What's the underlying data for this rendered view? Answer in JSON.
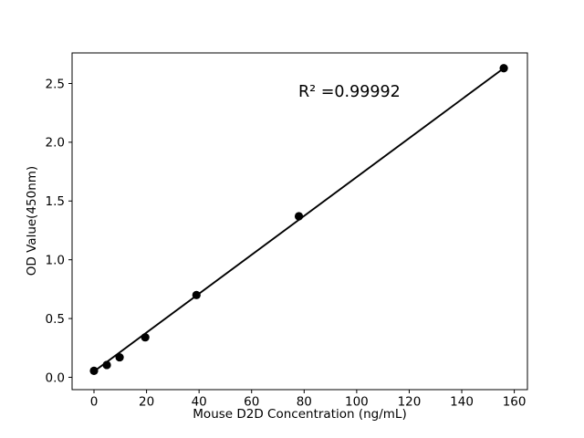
{
  "figure": {
    "background_color": "#ffffff",
    "foreground_color": "#000000"
  },
  "chart_data": {
    "type": "scatter",
    "title": "",
    "xlabel": "Mouse D2D Concentration (ng/mL)",
    "ylabel": "OD Value(450nm)",
    "annotation": "R² =0.99992",
    "x": [
      0,
      4.88,
      9.75,
      19.5,
      39,
      78,
      156
    ],
    "y": [
      0.055,
      0.105,
      0.17,
      0.34,
      0.7,
      1.37,
      2.63
    ],
    "fit_line": {
      "x": [
        0,
        156
      ],
      "y": [
        0.05,
        2.63
      ]
    },
    "xtick_values": [
      0,
      20,
      40,
      60,
      80,
      100,
      120,
      140,
      160
    ],
    "xtick_labels": [
      "0",
      "20",
      "40",
      "60",
      "80",
      "100",
      "120",
      "140",
      "160"
    ],
    "ytick_values": [
      0.0,
      0.5,
      1.0,
      1.5,
      2.0,
      2.5
    ],
    "ytick_labels": [
      "0.0",
      "0.5",
      "1.0",
      "1.5",
      "2.0",
      "2.5"
    ],
    "xlim": [
      -8.34,
      165.0
    ],
    "ylim": [
      -0.105,
      2.76
    ],
    "grid": false,
    "legend": null,
    "marker_color": "#000000",
    "line_color": "#000000"
  }
}
